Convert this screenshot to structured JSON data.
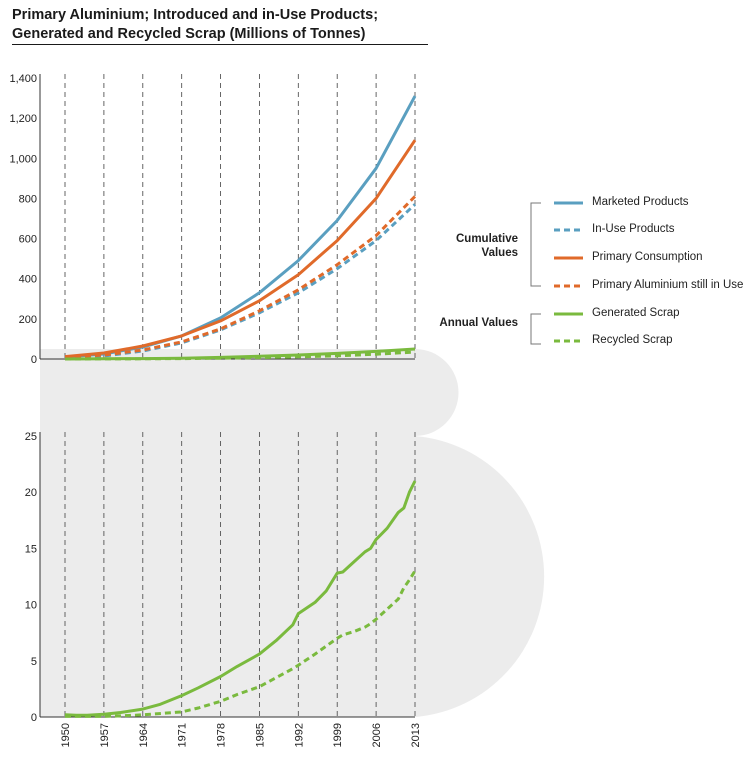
{
  "title_line1": "Primary Aluminium; Introduced and in-Use Products;",
  "title_line2": "Generated and Recycled Scrap (Millions of Tonnes)",
  "chart_data": [
    {
      "type": "line",
      "x": [
        1950,
        1957,
        1964,
        1971,
        1978,
        1985,
        1992,
        1999,
        2006,
        2013
      ],
      "xticks": [
        "1950",
        "1957",
        "1964",
        "1971",
        "1978",
        "1985",
        "1992",
        "1999",
        "2006",
        "2013"
      ],
      "ylim": [
        0,
        1400
      ],
      "yticks": [
        "0",
        "200",
        "400",
        "600",
        "800",
        "1,000",
        "1,200",
        "1,400"
      ],
      "grid_x": true,
      "series": [
        {
          "name": "Marketed Products",
          "color": "#5a9fc0",
          "dash": false,
          "values": [
            10,
            25,
            60,
            115,
            205,
            330,
            490,
            690,
            950,
            1310
          ]
        },
        {
          "name": "In-Use Products",
          "color": "#5a9fc0",
          "dash": true,
          "values": [
            5,
            15,
            40,
            80,
            145,
            230,
            330,
            450,
            590,
            770
          ]
        },
        {
          "name": "Primary Consumption",
          "color": "#e06a2a",
          "dash": false,
          "values": [
            12,
            30,
            65,
            115,
            190,
            290,
            420,
            590,
            800,
            1090
          ]
        },
        {
          "name": "Primary Aluminium still in Use",
          "color": "#e06a2a",
          "dash": true,
          "values": [
            8,
            20,
            45,
            85,
            150,
            240,
            345,
            470,
            615,
            810
          ]
        },
        {
          "name": "Generated Scrap",
          "color": "#7aba3e",
          "dash": false,
          "values": [
            0,
            1,
            2,
            4,
            8,
            14,
            20,
            28,
            38,
            50
          ]
        },
        {
          "name": "Recycled Scrap",
          "color": "#7aba3e",
          "dash": true,
          "values": [
            0,
            0.5,
            1,
            2,
            4,
            7,
            11,
            16,
            24,
            35
          ]
        }
      ]
    },
    {
      "type": "line",
      "x": [
        1950,
        1952,
        1954,
        1957,
        1960,
        1964,
        1967,
        1971,
        1974,
        1978,
        1981,
        1985,
        1988,
        1991,
        1992,
        1995,
        1997,
        1999,
        2000,
        2002,
        2004,
        2005,
        2006,
        2008,
        2010,
        2011,
        2012,
        2013
      ],
      "xticks": [
        "1950",
        "1957",
        "1964",
        "1971",
        "1978",
        "1985",
        "1992",
        "1999",
        "2006",
        "2013"
      ],
      "ylim": [
        0,
        25
      ],
      "yticks": [
        "0",
        "5",
        "10",
        "15",
        "20",
        "25"
      ],
      "grid_x": true,
      "series": [
        {
          "name": "Generated Scrap",
          "color": "#7aba3e",
          "dash": false,
          "values": [
            0.2,
            0.15,
            0.15,
            0.25,
            0.4,
            0.7,
            1.1,
            1.9,
            2.6,
            3.6,
            4.5,
            5.6,
            6.8,
            8.2,
            9.2,
            10.2,
            11.2,
            12.8,
            12.9,
            13.8,
            14.7,
            15.0,
            15.8,
            16.8,
            18.2,
            18.6,
            20.0,
            21.0
          ]
        },
        {
          "name": "Recycled Scrap",
          "color": "#7aba3e",
          "dash": true,
          "values": [
            0.05,
            0.05,
            0.05,
            0.05,
            0.1,
            0.2,
            0.3,
            0.45,
            0.8,
            1.4,
            2.0,
            2.7,
            3.5,
            4.3,
            4.6,
            5.6,
            6.3,
            7.0,
            7.3,
            7.6,
            8.0,
            8.3,
            8.7,
            9.6,
            10.5,
            11.5,
            12.2,
            13.0
          ]
        }
      ]
    }
  ],
  "legend": {
    "group_cumulative": "Cumulative Values",
    "group_annual": "Annual Values",
    "items": [
      {
        "label": "Marketed Products",
        "color": "#5a9fc0",
        "dash": false
      },
      {
        "label": "In-Use Products",
        "color": "#5a9fc0",
        "dash": true
      },
      {
        "label": "Primary Consumption",
        "color": "#e06a2a",
        "dash": false
      },
      {
        "label": "Primary Aluminium still in Use",
        "color": "#e06a2a",
        "dash": true
      },
      {
        "label": "Generated Scrap",
        "color": "#7aba3e",
        "dash": false
      },
      {
        "label": "Recycled Scrap",
        "color": "#7aba3e",
        "dash": true
      }
    ]
  }
}
